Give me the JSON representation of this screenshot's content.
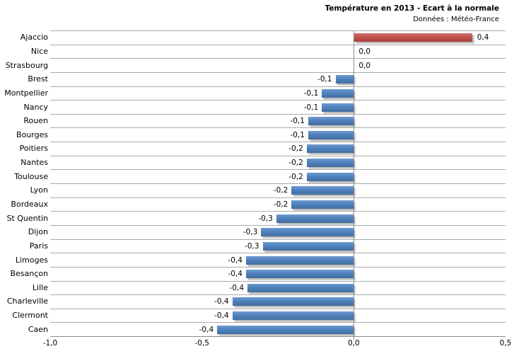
{
  "chart_data": {
    "type": "bar",
    "orientation": "horizontal",
    "title": "Température en 2013 - Ecart à la normale",
    "subtitle": "Données : Météo-France",
    "xlabel": "",
    "ylabel": "",
    "xlim": [
      -1.0,
      0.5
    ],
    "x_ticks": [
      -1.0,
      -0.5,
      0.0,
      0.5
    ],
    "x_tick_labels": [
      "-1,0",
      "-0,5",
      "0,0",
      "0,5"
    ],
    "grid": "category-separator-lines",
    "legend": "none",
    "decimal_style": "french-comma",
    "colors": {
      "positive_bar": "#C0504D",
      "negative_bar": "#4F81BD",
      "gridline": "#ABABAB",
      "axis_line": "#8C8C8C",
      "text": "#000000",
      "background": "#FFFFFF"
    },
    "points": [
      {
        "city": "Ajaccio",
        "label": "0,4",
        "value": 0.4,
        "bar_value": 0.39
      },
      {
        "city": "Nice",
        "label": "0,0",
        "value": 0.0,
        "bar_value": 0.0
      },
      {
        "city": "Strasbourg",
        "label": "0,0",
        "value": 0.0,
        "bar_value": 0.0
      },
      {
        "city": "Brest",
        "label": "-0,1",
        "value": -0.1,
        "bar_value": -0.06
      },
      {
        "city": "Montpellier",
        "label": "-0,1",
        "value": -0.1,
        "bar_value": -0.105
      },
      {
        "city": "Nancy",
        "label": "-0,1",
        "value": -0.1,
        "bar_value": -0.105
      },
      {
        "city": "Rouen",
        "label": "-0,1",
        "value": -0.1,
        "bar_value": -0.15
      },
      {
        "city": "Bourges",
        "label": "-0,1",
        "value": -0.1,
        "bar_value": -0.15
      },
      {
        "city": "Poitiers",
        "label": "-0,2",
        "value": -0.2,
        "bar_value": -0.155
      },
      {
        "city": "Nantes",
        "label": "-0,2",
        "value": -0.2,
        "bar_value": -0.155
      },
      {
        "city": "Toulouse",
        "label": "-0,2",
        "value": -0.2,
        "bar_value": -0.155
      },
      {
        "city": "Lyon",
        "label": "-0,2",
        "value": -0.2,
        "bar_value": -0.205
      },
      {
        "city": "Bordeaux",
        "label": "-0,2",
        "value": -0.2,
        "bar_value": -0.205
      },
      {
        "city": "St Quentin",
        "label": "-0,3",
        "value": -0.3,
        "bar_value": -0.255
      },
      {
        "city": "Dijon",
        "label": "-0,3",
        "value": -0.3,
        "bar_value": -0.305
      },
      {
        "city": "Paris",
        "label": "-0,3",
        "value": -0.3,
        "bar_value": -0.3
      },
      {
        "city": "Limoges",
        "label": "-0,4",
        "value": -0.4,
        "bar_value": -0.355
      },
      {
        "city": "Besançon",
        "label": "-0,4",
        "value": -0.4,
        "bar_value": -0.355
      },
      {
        "city": "Lille",
        "label": "-0,4",
        "value": -0.4,
        "bar_value": -0.35
      },
      {
        "city": "Charleville",
        "label": "-0,4",
        "value": -0.4,
        "bar_value": -0.4
      },
      {
        "city": "Clermont",
        "label": "-0,4",
        "value": -0.4,
        "bar_value": -0.4
      },
      {
        "city": "Caen",
        "label": "-0,4",
        "value": -0.4,
        "bar_value": -0.45
      }
    ]
  }
}
